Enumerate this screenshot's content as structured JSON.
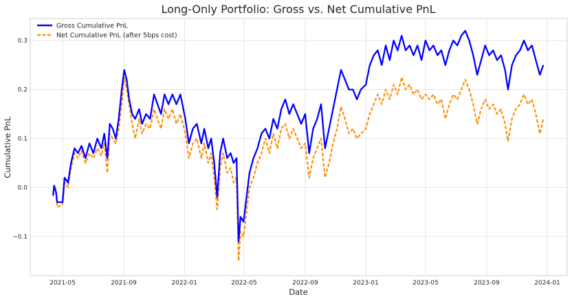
{
  "chart_data": {
    "type": "line",
    "title": "Long-Only Portfolio: Gross vs. Net Cumulative PnL",
    "xlabel": "Date",
    "ylabel": "Cumulative PnL",
    "x_range": [
      "2021-02-25",
      "2024-02-10"
    ],
    "ylim": [
      -0.18,
      0.345
    ],
    "grid": true,
    "legend_position": "top-left",
    "x_ticks": [
      "2021-05",
      "2021-09",
      "2022-01",
      "2022-05",
      "2022-09",
      "2023-01",
      "2023-05",
      "2023-09",
      "2024-01"
    ],
    "y_ticks": [
      {
        "value": -0.1,
        "label": "−0.1"
      },
      {
        "value": 0.0,
        "label": "0.0"
      },
      {
        "value": 0.1,
        "label": "0.1"
      },
      {
        "value": 0.2,
        "label": "0.2"
      },
      {
        "value": 0.3,
        "label": "0.3"
      }
    ],
    "series": [
      {
        "name": "Gross Cumulative PnL",
        "color": "#0000ff",
        "style": "solid",
        "points": [
          [
            "2021-04-12",
            -0.016
          ],
          [
            "2021-04-14",
            0.004
          ],
          [
            "2021-04-18",
            -0.01
          ],
          [
            "2021-04-20",
            -0.03
          ],
          [
            "2021-05-01",
            -0.03
          ],
          [
            "2021-05-05",
            0.02
          ],
          [
            "2021-05-12",
            0.01
          ],
          [
            "2021-05-18",
            0.05
          ],
          [
            "2021-05-25",
            0.08
          ],
          [
            "2021-06-01",
            0.07
          ],
          [
            "2021-06-08",
            0.085
          ],
          [
            "2021-06-16",
            0.06
          ],
          [
            "2021-06-24",
            0.09
          ],
          [
            "2021-07-02",
            0.07
          ],
          [
            "2021-07-10",
            0.1
          ],
          [
            "2021-07-18",
            0.08
          ],
          [
            "2021-07-24",
            0.11
          ],
          [
            "2021-07-30",
            0.06
          ],
          [
            "2021-08-04",
            0.13
          ],
          [
            "2021-08-10",
            0.12
          ],
          [
            "2021-08-16",
            0.1
          ],
          [
            "2021-08-22",
            0.14
          ],
          [
            "2021-08-28",
            0.2
          ],
          [
            "2021-09-02",
            0.24
          ],
          [
            "2021-09-07",
            0.22
          ],
          [
            "2021-09-12",
            0.18
          ],
          [
            "2021-09-18",
            0.15
          ],
          [
            "2021-09-24",
            0.14
          ],
          [
            "2021-10-02",
            0.16
          ],
          [
            "2021-10-08",
            0.13
          ],
          [
            "2021-10-16",
            0.15
          ],
          [
            "2021-10-24",
            0.14
          ],
          [
            "2021-11-01",
            0.19
          ],
          [
            "2021-11-08",
            0.17
          ],
          [
            "2021-11-15",
            0.15
          ],
          [
            "2021-11-22",
            0.19
          ],
          [
            "2021-11-30",
            0.17
          ],
          [
            "2021-12-08",
            0.19
          ],
          [
            "2021-12-16",
            0.17
          ],
          [
            "2021-12-24",
            0.19
          ],
          [
            "2022-01-03",
            0.14
          ],
          [
            "2022-01-10",
            0.09
          ],
          [
            "2022-01-18",
            0.12
          ],
          [
            "2022-01-26",
            0.13
          ],
          [
            "2022-02-04",
            0.09
          ],
          [
            "2022-02-10",
            0.12
          ],
          [
            "2022-02-18",
            0.08
          ],
          [
            "2022-02-24",
            0.1
          ],
          [
            "2022-03-02",
            0.05
          ],
          [
            "2022-03-08",
            -0.02
          ],
          [
            "2022-03-14",
            0.07
          ],
          [
            "2022-03-20",
            0.1
          ],
          [
            "2022-03-28",
            0.06
          ],
          [
            "2022-04-04",
            0.07
          ],
          [
            "2022-04-10",
            0.05
          ],
          [
            "2022-04-16",
            0.06
          ],
          [
            "2022-04-20",
            -0.11
          ],
          [
            "2022-04-24",
            -0.06
          ],
          [
            "2022-04-30",
            -0.07
          ],
          [
            "2022-05-06",
            -0.02
          ],
          [
            "2022-05-12",
            0.03
          ],
          [
            "2022-05-20",
            0.06
          ],
          [
            "2022-05-28",
            0.08
          ],
          [
            "2022-06-05",
            0.11
          ],
          [
            "2022-06-13",
            0.12
          ],
          [
            "2022-06-21",
            0.1
          ],
          [
            "2022-06-29",
            0.14
          ],
          [
            "2022-07-07",
            0.12
          ],
          [
            "2022-07-15",
            0.16
          ],
          [
            "2022-07-23",
            0.18
          ],
          [
            "2022-07-31",
            0.15
          ],
          [
            "2022-08-08",
            0.17
          ],
          [
            "2022-08-16",
            0.15
          ],
          [
            "2022-08-24",
            0.13
          ],
          [
            "2022-09-01",
            0.15
          ],
          [
            "2022-09-09",
            0.07
          ],
          [
            "2022-09-17",
            0.12
          ],
          [
            "2022-09-25",
            0.14
          ],
          [
            "2022-10-03",
            0.17
          ],
          [
            "2022-10-11",
            0.08
          ],
          [
            "2022-10-19",
            0.12
          ],
          [
            "2022-10-27",
            0.16
          ],
          [
            "2022-11-04",
            0.2
          ],
          [
            "2022-11-12",
            0.24
          ],
          [
            "2022-11-20",
            0.22
          ],
          [
            "2022-11-28",
            0.2
          ],
          [
            "2022-12-06",
            0.2
          ],
          [
            "2022-12-14",
            0.18
          ],
          [
            "2022-12-22",
            0.2
          ],
          [
            "2023-01-01",
            0.21
          ],
          [
            "2023-01-09",
            0.25
          ],
          [
            "2023-01-17",
            0.27
          ],
          [
            "2023-01-25",
            0.28
          ],
          [
            "2023-02-02",
            0.25
          ],
          [
            "2023-02-10",
            0.29
          ],
          [
            "2023-02-18",
            0.26
          ],
          [
            "2023-02-26",
            0.3
          ],
          [
            "2023-03-06",
            0.28
          ],
          [
            "2023-03-14",
            0.31
          ],
          [
            "2023-03-22",
            0.28
          ],
          [
            "2023-03-30",
            0.29
          ],
          [
            "2023-04-07",
            0.27
          ],
          [
            "2023-04-15",
            0.29
          ],
          [
            "2023-04-23",
            0.26
          ],
          [
            "2023-05-01",
            0.3
          ],
          [
            "2023-05-09",
            0.28
          ],
          [
            "2023-05-17",
            0.29
          ],
          [
            "2023-05-25",
            0.27
          ],
          [
            "2023-06-02",
            0.28
          ],
          [
            "2023-06-10",
            0.25
          ],
          [
            "2023-06-18",
            0.28
          ],
          [
            "2023-06-26",
            0.3
          ],
          [
            "2023-07-04",
            0.29
          ],
          [
            "2023-07-12",
            0.31
          ],
          [
            "2023-07-20",
            0.32
          ],
          [
            "2023-07-28",
            0.3
          ],
          [
            "2023-08-05",
            0.27
          ],
          [
            "2023-08-13",
            0.23
          ],
          [
            "2023-08-21",
            0.26
          ],
          [
            "2023-08-29",
            0.29
          ],
          [
            "2023-09-06",
            0.27
          ],
          [
            "2023-09-14",
            0.28
          ],
          [
            "2023-09-22",
            0.26
          ],
          [
            "2023-09-30",
            0.27
          ],
          [
            "2023-10-08",
            0.24
          ],
          [
            "2023-10-14",
            0.2
          ],
          [
            "2023-10-22",
            0.25
          ],
          [
            "2023-10-30",
            0.27
          ],
          [
            "2023-11-07",
            0.28
          ],
          [
            "2023-11-15",
            0.3
          ],
          [
            "2023-11-23",
            0.28
          ],
          [
            "2023-12-01",
            0.29
          ],
          [
            "2023-12-09",
            0.26
          ],
          [
            "2023-12-17",
            0.23
          ],
          [
            "2023-12-24",
            0.25
          ]
        ]
      },
      {
        "name": "Net Cumulative PnL (after 5bps cost)",
        "color": "#ff8c00",
        "style": "dashed",
        "points": [
          [
            "2021-04-12",
            -0.018
          ],
          [
            "2021-04-14",
            0.002
          ],
          [
            "2021-04-18",
            -0.012
          ],
          [
            "2021-04-20",
            -0.04
          ],
          [
            "2021-05-01",
            -0.035
          ],
          [
            "2021-05-05",
            0.01
          ],
          [
            "2021-05-12",
            0.0
          ],
          [
            "2021-05-18",
            0.04
          ],
          [
            "2021-05-25",
            0.07
          ],
          [
            "2021-06-01",
            0.06
          ],
          [
            "2021-06-08",
            0.075
          ],
          [
            "2021-06-16",
            0.05
          ],
          [
            "2021-06-24",
            0.07
          ],
          [
            "2021-07-02",
            0.06
          ],
          [
            "2021-07-10",
            0.08
          ],
          [
            "2021-07-18",
            0.065
          ],
          [
            "2021-07-24",
            0.09
          ],
          [
            "2021-07-30",
            0.03
          ],
          [
            "2021-08-04",
            0.11
          ],
          [
            "2021-08-10",
            0.1
          ],
          [
            "2021-08-16",
            0.09
          ],
          [
            "2021-08-22",
            0.12
          ],
          [
            "2021-08-28",
            0.17
          ],
          [
            "2021-09-02",
            0.225
          ],
          [
            "2021-09-07",
            0.2
          ],
          [
            "2021-09-12",
            0.17
          ],
          [
            "2021-09-18",
            0.13
          ],
          [
            "2021-09-24",
            0.1
          ],
          [
            "2021-10-02",
            0.14
          ],
          [
            "2021-10-08",
            0.11
          ],
          [
            "2021-10-16",
            0.13
          ],
          [
            "2021-10-24",
            0.12
          ],
          [
            "2021-11-01",
            0.16
          ],
          [
            "2021-11-08",
            0.14
          ],
          [
            "2021-11-15",
            0.12
          ],
          [
            "2021-11-22",
            0.16
          ],
          [
            "2021-11-30",
            0.14
          ],
          [
            "2021-12-08",
            0.16
          ],
          [
            "2021-12-16",
            0.13
          ],
          [
            "2021-12-24",
            0.15
          ],
          [
            "2022-01-03",
            0.11
          ],
          [
            "2022-01-10",
            0.06
          ],
          [
            "2022-01-18",
            0.09
          ],
          [
            "2022-01-26",
            0.1
          ],
          [
            "2022-02-04",
            0.06
          ],
          [
            "2022-02-10",
            0.09
          ],
          [
            "2022-02-18",
            0.05
          ],
          [
            "2022-02-24",
            0.07
          ],
          [
            "2022-03-02",
            0.02
          ],
          [
            "2022-03-08",
            -0.045
          ],
          [
            "2022-03-14",
            0.04
          ],
          [
            "2022-03-20",
            0.07
          ],
          [
            "2022-03-28",
            0.03
          ],
          [
            "2022-04-04",
            0.04
          ],
          [
            "2022-04-10",
            0.01
          ],
          [
            "2022-04-16",
            0.02
          ],
          [
            "2022-04-20",
            -0.15
          ],
          [
            "2022-04-24",
            -0.09
          ],
          [
            "2022-04-30",
            -0.1
          ],
          [
            "2022-05-06",
            -0.05
          ],
          [
            "2022-05-12",
            0.0
          ],
          [
            "2022-05-20",
            0.02
          ],
          [
            "2022-05-28",
            0.05
          ],
          [
            "2022-06-05",
            0.07
          ],
          [
            "2022-06-13",
            0.1
          ],
          [
            "2022-06-21",
            0.07
          ],
          [
            "2022-06-29",
            0.11
          ],
          [
            "2022-07-07",
            0.08
          ],
          [
            "2022-07-15",
            0.12
          ],
          [
            "2022-07-23",
            0.13
          ],
          [
            "2022-07-31",
            0.1
          ],
          [
            "2022-08-08",
            0.12
          ],
          [
            "2022-08-16",
            0.1
          ],
          [
            "2022-08-24",
            0.08
          ],
          [
            "2022-09-01",
            0.09
          ],
          [
            "2022-09-09",
            0.02
          ],
          [
            "2022-09-17",
            0.06
          ],
          [
            "2022-09-25",
            0.08
          ],
          [
            "2022-10-03",
            0.1
          ],
          [
            "2022-10-11",
            0.02
          ],
          [
            "2022-10-19",
            0.05
          ],
          [
            "2022-10-27",
            0.09
          ],
          [
            "2022-11-04",
            0.12
          ],
          [
            "2022-11-12",
            0.165
          ],
          [
            "2022-11-20",
            0.14
          ],
          [
            "2022-11-28",
            0.11
          ],
          [
            "2022-12-06",
            0.12
          ],
          [
            "2022-12-14",
            0.1
          ],
          [
            "2022-12-22",
            0.11
          ],
          [
            "2023-01-01",
            0.12
          ],
          [
            "2023-01-09",
            0.15
          ],
          [
            "2023-01-17",
            0.17
          ],
          [
            "2023-01-25",
            0.19
          ],
          [
            "2023-02-02",
            0.17
          ],
          [
            "2023-02-10",
            0.2
          ],
          [
            "2023-02-18",
            0.18
          ],
          [
            "2023-02-26",
            0.21
          ],
          [
            "2023-03-06",
            0.19
          ],
          [
            "2023-03-14",
            0.225
          ],
          [
            "2023-03-22",
            0.2
          ],
          [
            "2023-03-30",
            0.21
          ],
          [
            "2023-04-07",
            0.19
          ],
          [
            "2023-04-15",
            0.2
          ],
          [
            "2023-04-23",
            0.18
          ],
          [
            "2023-05-01",
            0.19
          ],
          [
            "2023-05-09",
            0.18
          ],
          [
            "2023-05-17",
            0.19
          ],
          [
            "2023-05-25",
            0.17
          ],
          [
            "2023-06-02",
            0.18
          ],
          [
            "2023-06-10",
            0.14
          ],
          [
            "2023-06-18",
            0.17
          ],
          [
            "2023-06-26",
            0.19
          ],
          [
            "2023-07-04",
            0.18
          ],
          [
            "2023-07-12",
            0.2
          ],
          [
            "2023-07-20",
            0.22
          ],
          [
            "2023-07-28",
            0.2
          ],
          [
            "2023-08-05",
            0.17
          ],
          [
            "2023-08-13",
            0.13
          ],
          [
            "2023-08-21",
            0.16
          ],
          [
            "2023-08-29",
            0.18
          ],
          [
            "2023-09-06",
            0.16
          ],
          [
            "2023-09-14",
            0.17
          ],
          [
            "2023-09-22",
            0.15
          ],
          [
            "2023-09-30",
            0.16
          ],
          [
            "2023-10-08",
            0.13
          ],
          [
            "2023-10-14",
            0.095
          ],
          [
            "2023-10-22",
            0.14
          ],
          [
            "2023-10-30",
            0.16
          ],
          [
            "2023-11-07",
            0.17
          ],
          [
            "2023-11-15",
            0.19
          ],
          [
            "2023-11-23",
            0.17
          ],
          [
            "2023-12-01",
            0.18
          ],
          [
            "2023-12-09",
            0.15
          ],
          [
            "2023-12-17",
            0.11
          ],
          [
            "2023-12-24",
            0.14
          ]
        ]
      }
    ]
  }
}
